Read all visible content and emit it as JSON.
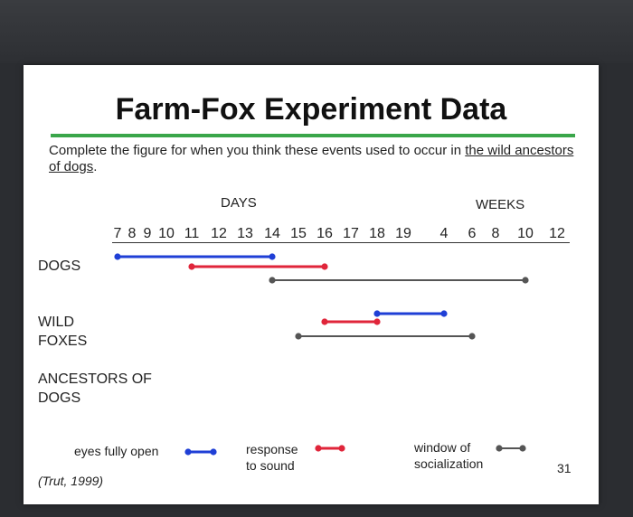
{
  "slide": {
    "title": "Farm-Fox Experiment Data",
    "instruction_part1": "Complete the figure for when you think these events used to occur in ",
    "instruction_underlined": "the wild ancestors of dogs",
    "instruction_end": ".",
    "days_header": "DAYS",
    "weeks_header": "WEEKS",
    "day_ticks": [
      "7",
      "8",
      "9",
      "10",
      "11",
      "12",
      "13",
      "14",
      "15",
      "16",
      "17",
      "18",
      "19"
    ],
    "week_ticks": [
      "4",
      "6",
      "8",
      "10",
      "12"
    ],
    "row_labels": {
      "dogs": "DOGS",
      "wild_foxes_1": "WILD",
      "wild_foxes_2": "FOXES",
      "ancestors_1": "ANCESTORS OF",
      "ancestors_2": "DOGS"
    },
    "legend": {
      "eyes": "eyes fully open",
      "response_1": "response",
      "response_2": "to sound",
      "window_1": "window of",
      "window_2": "socialization"
    },
    "citation": "(Trut, 1999)",
    "page_number": "31"
  },
  "colors": {
    "eyes_open": "#1f3fd6",
    "response_to_sound": "#e0253a",
    "socialization": "#555555",
    "title_rule": "#3aa64a"
  },
  "chart_data": {
    "type": "timeline",
    "axis": {
      "days": [
        7,
        8,
        9,
        10,
        11,
        12,
        13,
        14,
        15,
        16,
        17,
        18,
        19
      ],
      "weeks": [
        4,
        6,
        8,
        10,
        12
      ]
    },
    "series": [
      {
        "group": "DOGS",
        "event": "eyes fully open",
        "start": "day 7",
        "end": "day 14"
      },
      {
        "group": "DOGS",
        "event": "response to sound",
        "start": "day 11",
        "end": "day 16"
      },
      {
        "group": "DOGS",
        "event": "window of socialization",
        "start": "day 14",
        "end": "week 10"
      },
      {
        "group": "WILD FOXES",
        "event": "eyes fully open",
        "start": "day 18",
        "end": "week 4"
      },
      {
        "group": "WILD FOXES",
        "event": "response to sound",
        "start": "day 16",
        "end": "day 18"
      },
      {
        "group": "WILD FOXES",
        "event": "window of socialization",
        "start": "day 15",
        "end": "week 6"
      }
    ]
  }
}
